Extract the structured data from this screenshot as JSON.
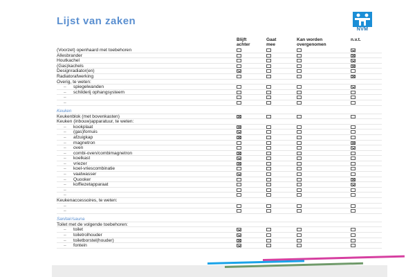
{
  "title": "Lijst van zaken",
  "logo": {
    "text": "NVM",
    "color": "#1b8ed6"
  },
  "columns": [
    "Blijft\nachter",
    "Gaat\nmee",
    "Kan worden\novergenomen",
    "n.v.t."
  ],
  "colors": {
    "accent": "#5a8fd0",
    "stripe_pink": "#d63fa0",
    "stripe_blue": "#1aa3e8",
    "stripe_green": "#6f9a6a"
  },
  "sections": [
    {
      "heading": "",
      "rows": [
        {
          "label": "(Voorzet) openhaard met toebehoren",
          "checked": 3
        },
        {
          "label": "Allesbrander",
          "checked": 3
        },
        {
          "label": "Houtkachel",
          "checked": 3
        },
        {
          "label": "(Gas)kachels",
          "checked": 3
        },
        {
          "label": "Designradiator(en)",
          "checked": 0
        },
        {
          "label": "Radiatorafwerking",
          "checked": 3
        },
        {
          "label": "Overig, te weten:",
          "header": true
        },
        {
          "dash": "–",
          "label": "spiegelwanden",
          "checked": 3
        },
        {
          "dash": "–",
          "label": "schilderij ophangsysteem",
          "checked": null
        },
        {
          "dash": "–",
          "label": "",
          "checked": null
        },
        {
          "dash": "–",
          "label": "",
          "checked": null
        }
      ]
    },
    {
      "heading": "Keuken",
      "rows": [
        {
          "label": "Keukenblok (met bovenkasten)",
          "checked": 0
        },
        {
          "label": "Keuken (inbouw)apparatuur, te weten:",
          "header": true
        },
        {
          "dash": "–",
          "label": "kookplaat",
          "checked": 0
        },
        {
          "dash": "–",
          "label": "(gas)fornuis",
          "checked": 0
        },
        {
          "dash": "–",
          "label": "afzuigkap",
          "checked": 0
        },
        {
          "dash": "–",
          "label": "magnetron",
          "checked": 3
        },
        {
          "dash": "–",
          "label": "oven",
          "checked": 3
        },
        {
          "dash": "–",
          "label": "combi-oven/combimagnetron",
          "checked": 0
        },
        {
          "dash": "–",
          "label": "koelkast",
          "checked": 0
        },
        {
          "dash": "–",
          "label": "vriezer",
          "checked": 0
        },
        {
          "dash": "–",
          "label": "koel-vriescombinatie",
          "checked": null
        },
        {
          "dash": "–",
          "label": "vaatwasser",
          "checked": 0
        },
        {
          "dash": "–",
          "label": "Quooker",
          "checked": 3
        },
        {
          "dash": "–",
          "label": "koffiezetapparaat",
          "checked": 3
        },
        {
          "dash": "–",
          "label": "",
          "checked": null
        },
        {
          "dash": "–",
          "label": "",
          "checked": null
        },
        {
          "label": "Keukenaccessoires, te weten:",
          "header": true
        },
        {
          "dash": "–",
          "label": "",
          "checked": null
        },
        {
          "dash": "–",
          "label": "",
          "checked": null
        }
      ]
    },
    {
      "heading": "Sanitair/sauna",
      "rows": [
        {
          "label": "Toilet met de volgende toebehoren:",
          "header": true
        },
        {
          "dash": "–",
          "label": "toilet",
          "checked": 0
        },
        {
          "dash": "–",
          "label": "toiletrolhouder",
          "checked": 0
        },
        {
          "dash": "–",
          "label": "toiletborstel(houder)",
          "checked": 0
        },
        {
          "dash": "–",
          "label": "fontein",
          "checked": 0
        }
      ]
    }
  ]
}
